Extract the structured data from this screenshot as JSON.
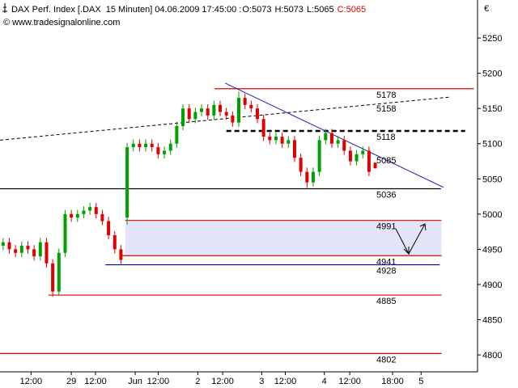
{
  "chart_data": {
    "type": "candlestick",
    "title": "DAX Perf. Index [.DAX  15 Minuten] 04.06.2009 17:45:00 :",
    "quote": [
      {
        "text": "O:5073",
        "color": "#000000"
      },
      {
        "text": "H:5073",
        "color": "#000000"
      },
      {
        "text": "L:5065",
        "color": "#000000"
      },
      {
        "text": "C:5065",
        "color": "#e00000"
      }
    ],
    "subtitle": "© www.tradesignalonline.com",
    "currency": "€",
    "up_color": "#00a000",
    "down_color": "#e00000",
    "ylim": [
      4776,
      5304
    ],
    "yticks": [
      4800,
      4850,
      4900,
      4950,
      5000,
      5050,
      5100,
      5150,
      5200,
      5250
    ],
    "xlim": [
      0,
      77
    ],
    "xticks": [
      {
        "value": 5,
        "label": "12:00"
      },
      {
        "value": 11.5,
        "label": "29"
      },
      {
        "value": 15.4,
        "label": "12:00"
      },
      {
        "value": 21.8,
        "label": "Jun"
      },
      {
        "value": 25.5,
        "label": "12:00"
      },
      {
        "value": 31.9,
        "label": "2"
      },
      {
        "value": 35.9,
        "label": "12:00"
      },
      {
        "value": 42.2,
        "label": "3"
      },
      {
        "value": 46,
        "label": "12:00"
      },
      {
        "value": 52.3,
        "label": "4"
      },
      {
        "value": 56.4,
        "label": "12:00"
      },
      {
        "value": 63.3,
        "label": "18:00"
      },
      {
        "value": 67.9,
        "label": "5"
      }
    ],
    "x": [
      0.5,
      1.5,
      2.5,
      3.5,
      4.5,
      5.5,
      6.5,
      7.5,
      8.5,
      9.5,
      10.5,
      11.5,
      12.5,
      13.5,
      14.5,
      15.5,
      16.5,
      17.5,
      18.5,
      19.5,
      20.5,
      21.5,
      22.5,
      23.5,
      24.5,
      25.5,
      26.5,
      27.5,
      28.5,
      29.5,
      30.5,
      31.5,
      32.5,
      33.5,
      34.5,
      35.5,
      36.5,
      37.5,
      38.5,
      39.5,
      40.5,
      41.5,
      42.5,
      43.5,
      44.5,
      45.5,
      46.5,
      47.5,
      48.5,
      49.5,
      50.5,
      51.5,
      52.5,
      53.5,
      54.5,
      55.5,
      56.5,
      57.5,
      58.5,
      59.5,
      60.5
    ],
    "open": [
      4955,
      4960,
      4950,
      4945,
      4955,
      4950,
      4940,
      4960,
      4930,
      4890,
      4945,
      5000,
      4995,
      5000,
      5005,
      5010,
      5000,
      4990,
      4970,
      4950,
      4995,
      5095,
      5100,
      5095,
      5100,
      5095,
      5085,
      5090,
      5100,
      5125,
      5150,
      5135,
      5145,
      5150,
      5140,
      5155,
      5145,
      5140,
      5130,
      5165,
      5155,
      5150,
      5135,
      5110,
      5105,
      5110,
      5100,
      5105,
      5080,
      5060,
      5045,
      5060,
      5105,
      5115,
      5100,
      5105,
      5090,
      5075,
      5085,
      5090,
      5073
    ],
    "high": [
      4966,
      4966,
      4956,
      4961,
      4961,
      4956,
      4966,
      4966,
      4936,
      4951,
      5006,
      5006,
      5006,
      5011,
      5016,
      5016,
      5006,
      4996,
      4976,
      4956,
      5101,
      5106,
      5106,
      5106,
      5106,
      5101,
      5096,
      5106,
      5131,
      5156,
      5156,
      5151,
      5156,
      5156,
      5161,
      5161,
      5151,
      5146,
      5174,
      5171,
      5161,
      5156,
      5141,
      5116,
      5116,
      5116,
      5111,
      5111,
      5086,
      5066,
      5066,
      5111,
      5121,
      5121,
      5111,
      5111,
      5096,
      5091,
      5096,
      5096,
      5073
    ],
    "low": [
      4949,
      4944,
      4939,
      4939,
      4944,
      4934,
      4934,
      4924,
      4883,
      4884,
      4939,
      4989,
      4989,
      4994,
      4999,
      4994,
      4984,
      4964,
      4944,
      4929,
      4985,
      5089,
      5089,
      5089,
      5089,
      5079,
      5079,
      5084,
      5094,
      5119,
      5129,
      5129,
      5139,
      5134,
      5134,
      5139,
      5134,
      5124,
      5124,
      5149,
      5144,
      5129,
      5104,
      5099,
      5099,
      5094,
      5094,
      5074,
      5054,
      5037,
      5039,
      5054,
      5099,
      5094,
      5094,
      5084,
      5069,
      5069,
      5079,
      5054,
      5065
    ],
    "close": [
      4960,
      4950,
      4945,
      4955,
      4950,
      4940,
      4960,
      4930,
      4890,
      4945,
      5000,
      4995,
      5000,
      5005,
      5010,
      5000,
      4990,
      4970,
      4950,
      4935,
      5095,
      5100,
      5095,
      5100,
      5095,
      5085,
      5090,
      5100,
      5125,
      5150,
      5135,
      5145,
      5150,
      5140,
      5155,
      5145,
      5140,
      5130,
      5165,
      5155,
      5150,
      5135,
      5110,
      5105,
      5110,
      5100,
      5105,
      5080,
      5060,
      5045,
      5060,
      5105,
      5115,
      5100,
      5105,
      5090,
      5075,
      5085,
      5090,
      5060,
      5065
    ],
    "band": {
      "range": [
        4941,
        4991
      ],
      "x": [
        20.2,
        71.2
      ],
      "color": "#e4e4fa"
    },
    "levels": [
      {
        "value": 5178,
        "color": "#e00000",
        "x": [
          34.6,
          76.4
        ],
        "style": "solid"
      },
      {
        "value": 5118,
        "color": "#000000",
        "x": [
          36.5,
          75
        ],
        "style": "dashed"
      },
      {
        "value": 5036,
        "color": "#000000",
        "x": [
          0,
          71.1
        ],
        "style": "solid"
      },
      {
        "value": 4991,
        "color": "#e00000",
        "x": [
          20.2,
          71.2
        ],
        "style": "solid"
      },
      {
        "value": 4941,
        "color": "#e00000",
        "x": [
          19.6,
          71.2
        ],
        "style": "solid"
      },
      {
        "value": 4928,
        "color": "#0000c0",
        "x": [
          17,
          70.9
        ],
        "style": "solid"
      },
      {
        "value": 4885,
        "color": "#e00000",
        "x": [
          7.8,
          71.2
        ],
        "style": "solid"
      },
      {
        "value": 4802,
        "color": "#e00000",
        "x": [
          0,
          71.2
        ],
        "style": "solid"
      }
    ],
    "trendlines": [
      {
        "label": 5158,
        "color": "#000000",
        "label_color": "#000000",
        "style": "dashed",
        "start": [
          0,
          5105
        ],
        "end": [
          72.4,
          5166
        ]
      },
      {
        "label": 5085,
        "color": "#2020c0",
        "label_color": "#0000c0",
        "style": "solid",
        "start": [
          36.3,
          5186
        ],
        "end": [
          71.5,
          5038
        ]
      }
    ]
  }
}
